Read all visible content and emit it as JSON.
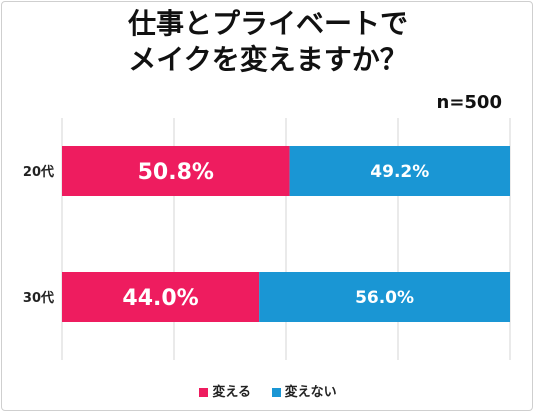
{
  "chart_data": {
    "type": "bar",
    "stacked": "horizontal-100",
    "title_lines": [
      "仕事とプライベートで",
      "メイクを変えますか？"
    ],
    "annotation": "n=500",
    "categories": [
      "20代",
      "30代"
    ],
    "series": [
      {
        "name": "変える",
        "color": "#ee1c5f",
        "values": [
          50.8,
          44.0
        ],
        "labels": [
          "50.8%",
          "44.0%"
        ]
      },
      {
        "name": "変えない",
        "color": "#1a96d4",
        "values": [
          49.2,
          56.0
        ],
        "labels": [
          "49.2%",
          "56.0%"
        ]
      }
    ],
    "xlim": [
      0,
      100
    ],
    "grid": true,
    "legend_position": "bottom"
  }
}
